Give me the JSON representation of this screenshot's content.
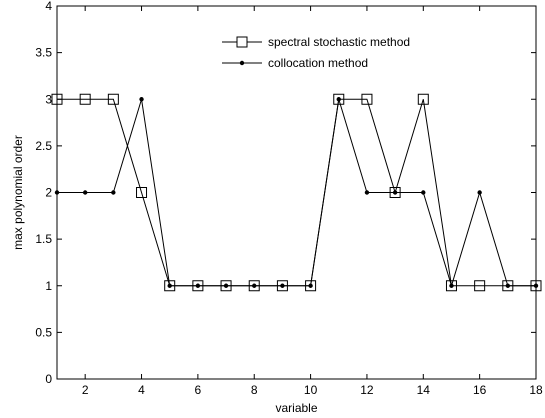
{
  "chart_data": {
    "type": "line",
    "title": "",
    "xlabel": "variable",
    "ylabel": "max polynomial order",
    "xlim": [
      1,
      18
    ],
    "ylim": [
      0,
      4
    ],
    "x_ticks": [
      2,
      4,
      6,
      8,
      10,
      12,
      14,
      16,
      18
    ],
    "y_ticks": [
      0,
      0.5,
      1,
      1.5,
      2,
      2.5,
      3,
      3.5,
      4
    ],
    "x_tick_labels": [
      "2",
      "4",
      "6",
      "8",
      "10",
      "12",
      "14",
      "16",
      "18"
    ],
    "y_tick_labels": [
      "0",
      "0.5",
      "1",
      "1.5",
      "2",
      "2.5",
      "3",
      "3.5",
      "4"
    ],
    "grid": false,
    "legend_position": "top-right",
    "x": [
      1,
      2,
      3,
      4,
      5,
      6,
      7,
      8,
      9,
      10,
      11,
      12,
      13,
      14,
      15,
      16,
      17,
      18
    ],
    "series": [
      {
        "name": "spectral stochastic method",
        "marker": "square",
        "color": "#000000",
        "values": [
          3,
          3,
          3,
          2,
          1,
          1,
          1,
          1,
          1,
          1,
          3,
          3,
          2,
          3,
          1,
          1,
          1,
          1
        ]
      },
      {
        "name": "collocation method",
        "marker": "dot",
        "color": "#000000",
        "values": [
          2,
          2,
          2,
          3,
          1,
          1,
          1,
          1,
          1,
          1,
          3,
          2,
          2,
          2,
          1,
          2,
          1,
          1
        ]
      }
    ]
  }
}
